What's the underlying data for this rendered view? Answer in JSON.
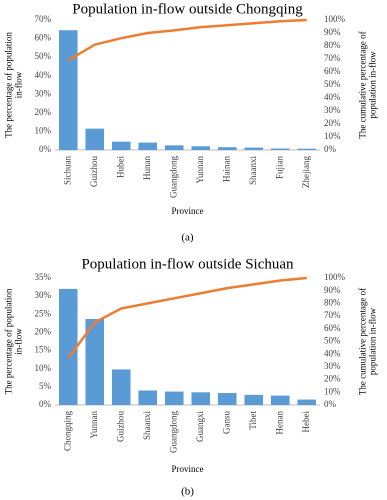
{
  "chart_data": [
    {
      "type": "bar",
      "title": "Population in-flow outside Chongqing",
      "categories": [
        "Sichuan",
        "Guizhou",
        "Hubei",
        "Hunan",
        "Guangdong",
        "Yunnan",
        "Hainan",
        "Shaanxi",
        "Fujian",
        "Zhejiang"
      ],
      "series": [
        {
          "color": "#5b9bd5",
          "values": [
            64.5,
            11.5,
            4.5,
            4,
            2.5,
            2,
            1.5,
            1.3,
            0.8,
            0.7
          ]
        },
        {
          "type": "line",
          "axis": "y2",
          "color": "#ed7d31",
          "values": [
            69,
            81,
            86,
            90,
            92,
            94.5,
            96,
            97.5,
            99,
            100
          ]
        }
      ],
      "ylim": [
        0,
        70
      ],
      "yticks": [
        {
          "value": 0,
          "label": "0%"
        },
        {
          "value": 10,
          "label": "10%"
        },
        {
          "value": 20,
          "label": "20%"
        },
        {
          "value": 30,
          "label": "30%"
        },
        {
          "value": 40,
          "label": "40%"
        },
        {
          "value": 50,
          "label": "50%"
        },
        {
          "value": 60,
          "label": "60%"
        },
        {
          "value": 70,
          "label": "70%"
        }
      ],
      "y2lim": [
        0,
        100
      ],
      "y2ticks": [
        {
          "value": 0,
          "label": "0%"
        },
        {
          "value": 10,
          "label": "10%"
        },
        {
          "value": 20,
          "label": "20%"
        },
        {
          "value": 30,
          "label": "30%"
        },
        {
          "value": 40,
          "label": "40%"
        },
        {
          "value": 50,
          "label": "50%"
        },
        {
          "value": 60,
          "label": "60%"
        },
        {
          "value": 70,
          "label": "70%"
        },
        {
          "value": 80,
          "label": "80%"
        },
        {
          "value": 90,
          "label": "90%"
        },
        {
          "value": 100,
          "label": "100%"
        }
      ],
      "xlabel": "Province",
      "ylabel": "The percentage of population in-flow",
      "y2label": "The cumulative percentage of population in-flow",
      "caption": "(a)"
    },
    {
      "type": "bar",
      "title": "Population in-flow outside Sichuan",
      "categories": [
        "Chongqing",
        "Yunnan",
        "Guizhou",
        "Shaanxi",
        "Guangdong",
        "Guangxi",
        "Gansu",
        "Tibet",
        "Henan",
        "Hebei"
      ],
      "series": [
        {
          "color": "#5b9bd5",
          "values": [
            32,
            23.7,
            9.8,
            4,
            3.7,
            3.5,
            3.3,
            2.8,
            2.6,
            1.5
          ]
        },
        {
          "type": "line",
          "axis": "y2",
          "color": "#ed7d31",
          "values": [
            37,
            65,
            76,
            80,
            84,
            88,
            92,
            95,
            98,
            100
          ]
        }
      ],
      "ylim": [
        0,
        35
      ],
      "yticks": [
        {
          "value": 0,
          "label": "0%"
        },
        {
          "value": 5,
          "label": "5%"
        },
        {
          "value": 10,
          "label": "10%"
        },
        {
          "value": 15,
          "label": "15%"
        },
        {
          "value": 20,
          "label": "20%"
        },
        {
          "value": 25,
          "label": "25%"
        },
        {
          "value": 30,
          "label": "30%"
        },
        {
          "value": 35,
          "label": "35%"
        }
      ],
      "y2lim": [
        0,
        100
      ],
      "y2ticks": [
        {
          "value": 0,
          "label": "0%"
        },
        {
          "value": 10,
          "label": "10%"
        },
        {
          "value": 20,
          "label": "20%"
        },
        {
          "value": 30,
          "label": "30%"
        },
        {
          "value": 40,
          "label": "40%"
        },
        {
          "value": 50,
          "label": "50%"
        },
        {
          "value": 60,
          "label": "60%"
        },
        {
          "value": 70,
          "label": "70%"
        },
        {
          "value": 80,
          "label": "80%"
        },
        {
          "value": 90,
          "label": "90%"
        },
        {
          "value": 100,
          "label": "100%"
        }
      ],
      "xlabel": "Province",
      "ylabel": "The percentage of population in-flow",
      "y2label": "The cumulative percentage of population in-flow",
      "caption": "(b)"
    }
  ]
}
